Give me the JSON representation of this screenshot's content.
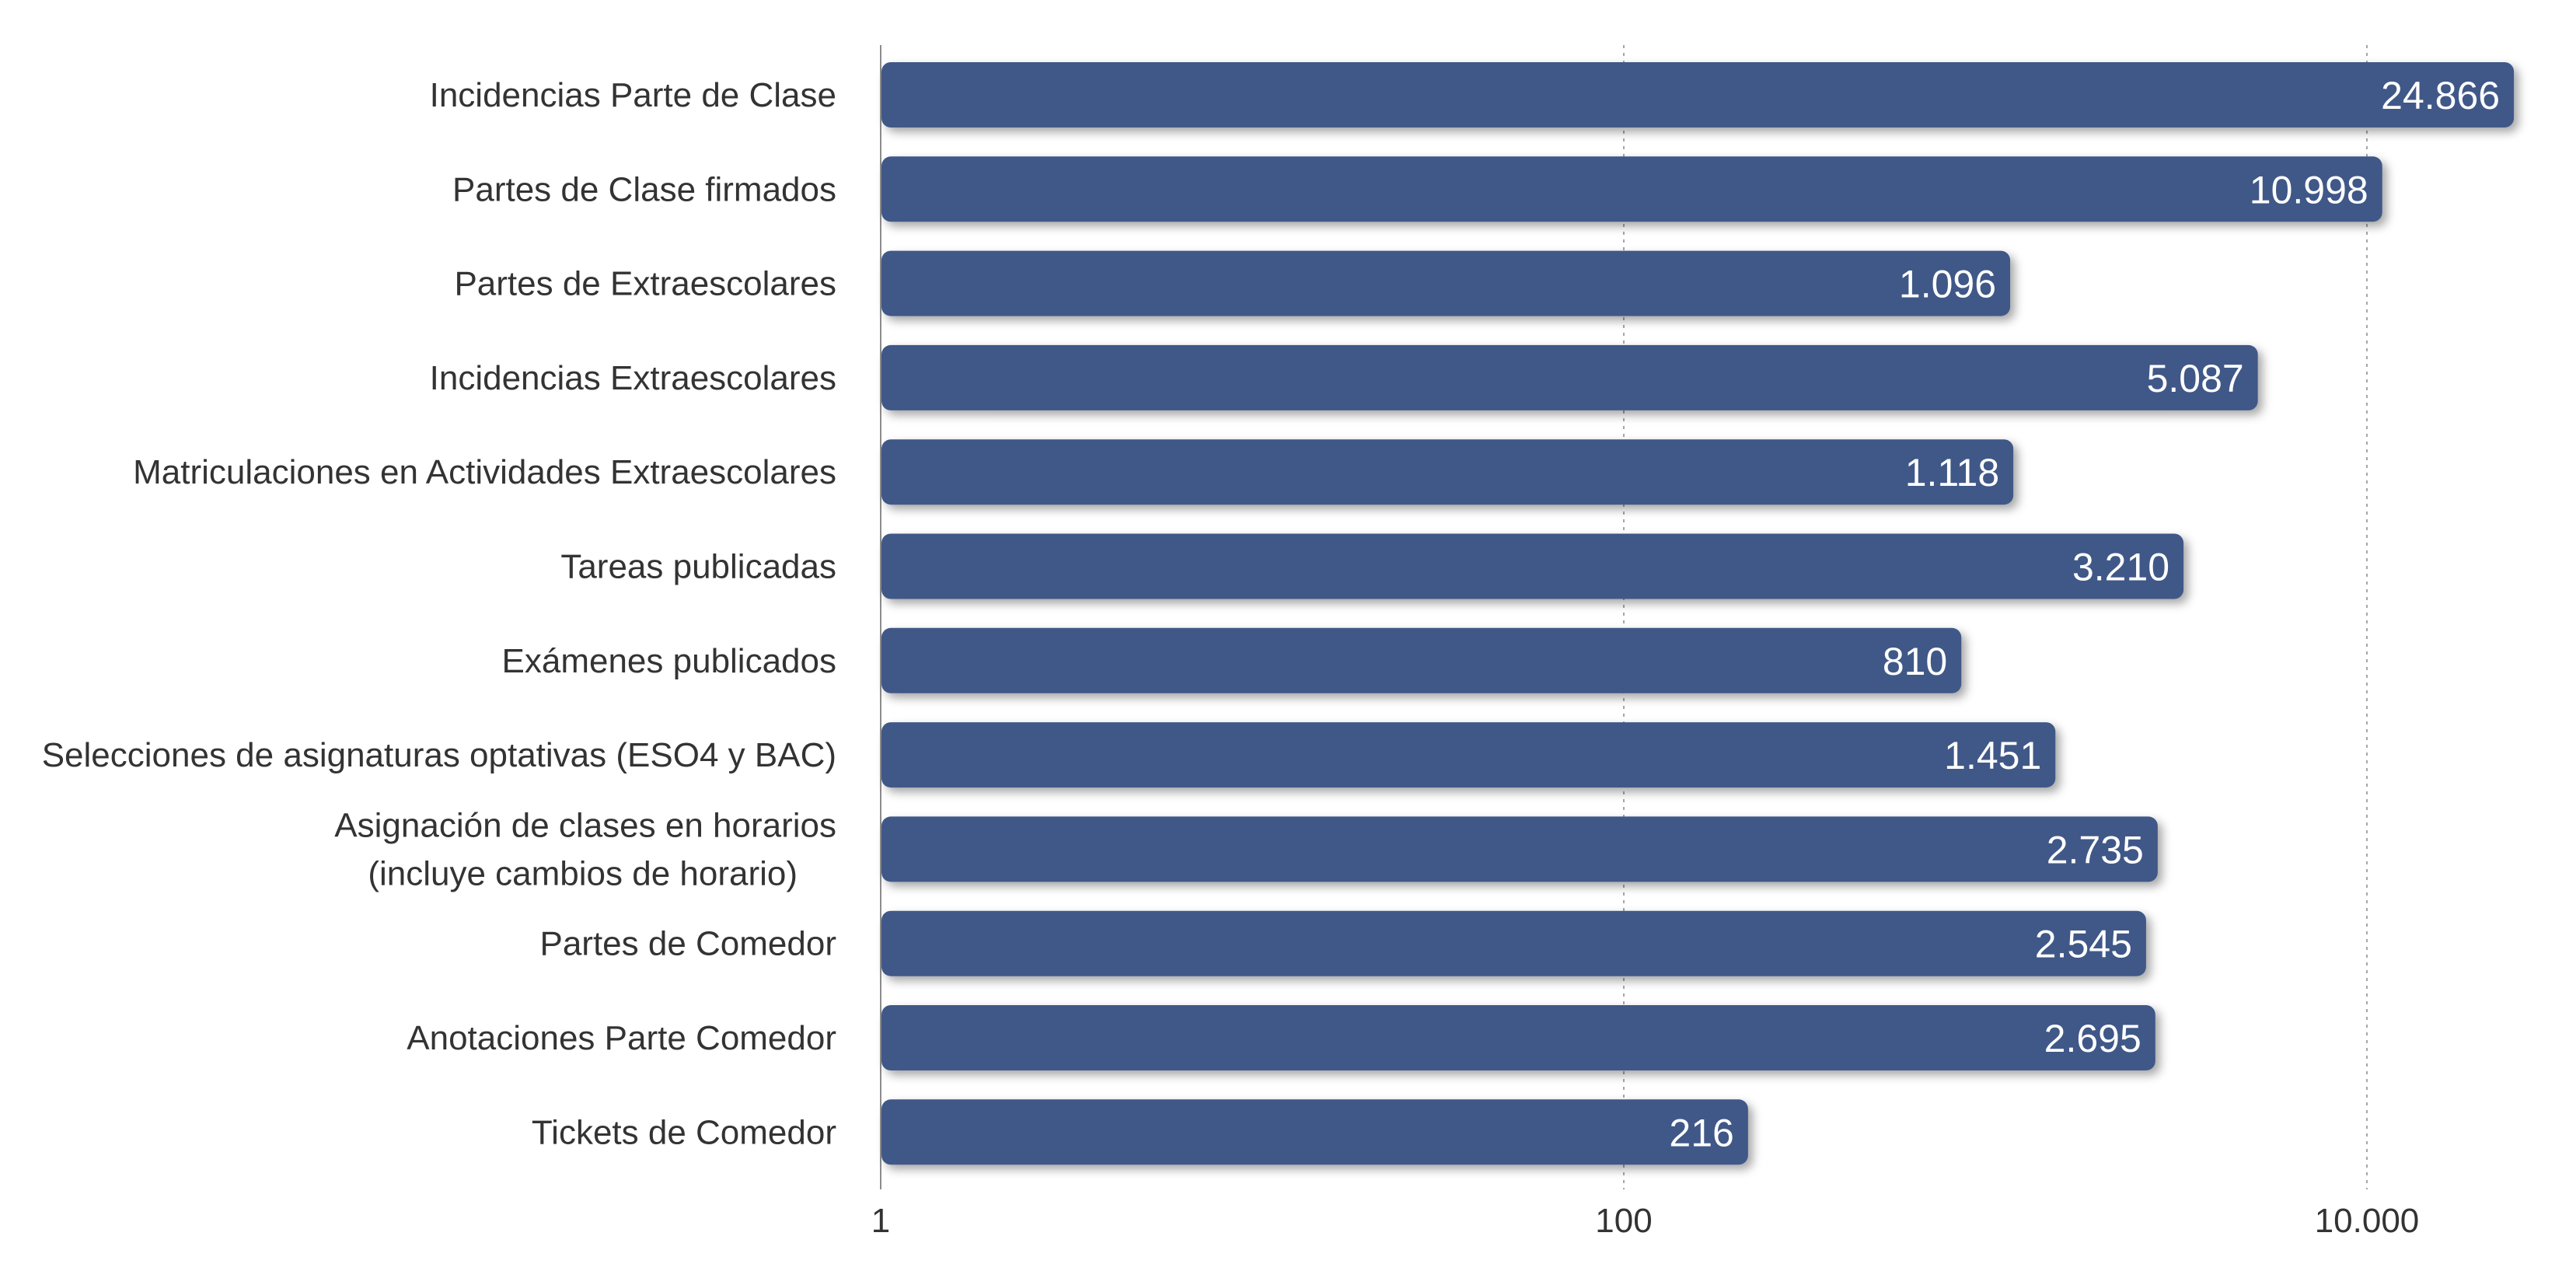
{
  "chart_data": {
    "type": "bar",
    "orientation": "horizontal",
    "x_scale": "log10",
    "xlim": [
      1,
      40000
    ],
    "x_ticks": [
      {
        "value": 1,
        "label": "1"
      },
      {
        "value": 100,
        "label": "100"
      },
      {
        "value": 10000,
        "label": "10.000"
      }
    ],
    "grid": "vertical-dotted",
    "bar_color": "#3f5888",
    "categories": [
      {
        "label": [
          "Incidencias Parte de Clase"
        ],
        "value": 24866,
        "value_label": "24.866"
      },
      {
        "label": [
          "Partes de Clase firmados"
        ],
        "value": 10998,
        "value_label": "10.998"
      },
      {
        "label": [
          "Partes de Extraescolares"
        ],
        "value": 1096,
        "value_label": "1.096"
      },
      {
        "label": [
          "Incidencias Extraescolares"
        ],
        "value": 5087,
        "value_label": "5.087"
      },
      {
        "label": [
          "Matriculaciones en Actividades Extraescolares"
        ],
        "value": 1118,
        "value_label": "1.118"
      },
      {
        "label": [
          "Tareas publicadas"
        ],
        "value": 3210,
        "value_label": "3.210"
      },
      {
        "label": [
          "Exámenes publicados"
        ],
        "value": 810,
        "value_label": "810"
      },
      {
        "label": [
          "Selecciones de asignaturas optativas (ESO4 y BAC)"
        ],
        "value": 1451,
        "value_label": "1.451"
      },
      {
        "label": [
          "Asignación de clases en horarios",
          "(incluye cambios de horario)"
        ],
        "value": 2735,
        "value_label": "2.735"
      },
      {
        "label": [
          "Partes de Comedor"
        ],
        "value": 2545,
        "value_label": "2.545"
      },
      {
        "label": [
          "Anotaciones Parte Comedor"
        ],
        "value": 2695,
        "value_label": "2.695"
      },
      {
        "label": [
          "Tickets de Comedor"
        ],
        "value": 216,
        "value_label": "216"
      }
    ]
  }
}
